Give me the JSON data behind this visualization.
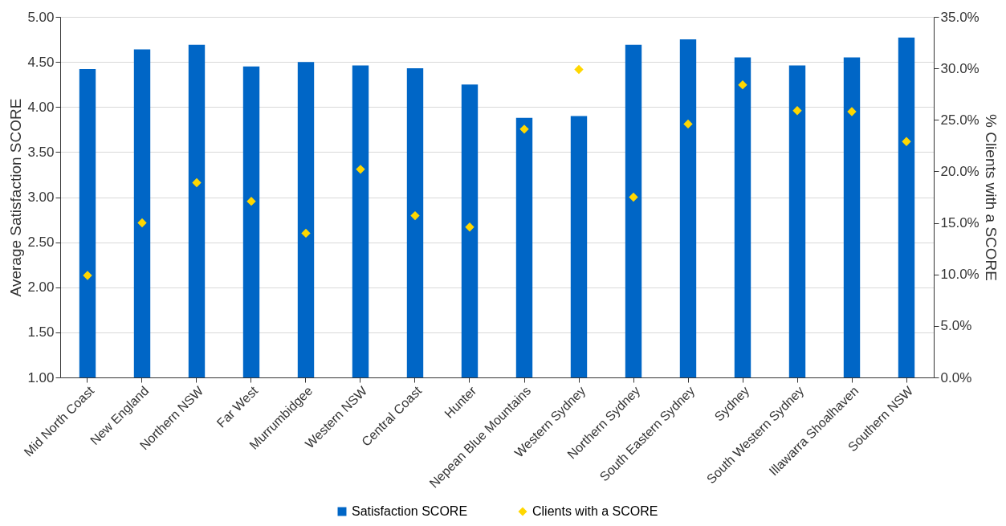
{
  "chart_data": {
    "type": "bar",
    "ylabel": "Average Satisfaction SCORE",
    "y2label": "% Clients with a SCORE",
    "categories": [
      "Mid North Coast",
      "New England",
      "Northern NSW",
      "Far West",
      "Murrumbidgee",
      "Western NSW",
      "Central Coast",
      "Hunter",
      "Nepean Blue Mountains",
      "Western Sydney",
      "Northern Sydney",
      "South Eastern Sydney",
      "Sydney",
      "South Western Sydney",
      "Illawarra Shoalhaven",
      "Southern NSW"
    ],
    "series": [
      {
        "name": "Satisfaction SCORE",
        "color": "#0066c6",
        "values": [
          4.42,
          4.64,
          4.69,
          4.45,
          4.5,
          4.46,
          4.43,
          4.25,
          3.88,
          3.9,
          4.69,
          4.75,
          4.55,
          4.46,
          4.55,
          4.77
        ]
      },
      {
        "name": "Clients with a SCORE",
        "type": "scatter",
        "axis": "y2",
        "color": "#ffd700",
        "marker": "diamond",
        "values": [
          9.9,
          15.0,
          18.9,
          17.1,
          14.0,
          20.2,
          15.7,
          14.6,
          24.1,
          29.9,
          17.5,
          24.6,
          28.4,
          25.9,
          25.8,
          22.9
        ]
      }
    ],
    "ylim": [
      1,
      5
    ],
    "yticks": [
      {
        "value": 1,
        "label": "1.00"
      },
      {
        "value": 1.5,
        "label": "1.50"
      },
      {
        "value": 2,
        "label": "2.00"
      },
      {
        "value": 2.5,
        "label": "2.50"
      },
      {
        "value": 3,
        "label": "3.00"
      },
      {
        "value": 3.5,
        "label": "3.50"
      },
      {
        "value": 4,
        "label": "4.00"
      },
      {
        "value": 4.5,
        "label": "4.50"
      },
      {
        "value": 5,
        "label": "5.00"
      }
    ],
    "y2lim": [
      0,
      35
    ],
    "y2ticks": [
      {
        "value": 0,
        "label": "0.0%"
      },
      {
        "value": 5,
        "label": "5.0%"
      },
      {
        "value": 10,
        "label": "10.0%"
      },
      {
        "value": 15,
        "label": "15.0%"
      },
      {
        "value": 20,
        "label": "20.0%"
      },
      {
        "value": 25,
        "label": "25.0%"
      },
      {
        "value": 30,
        "label": "30.0%"
      },
      {
        "value": 35,
        "label": "35.0%"
      }
    ],
    "grid": "y",
    "legend": "bottom"
  }
}
